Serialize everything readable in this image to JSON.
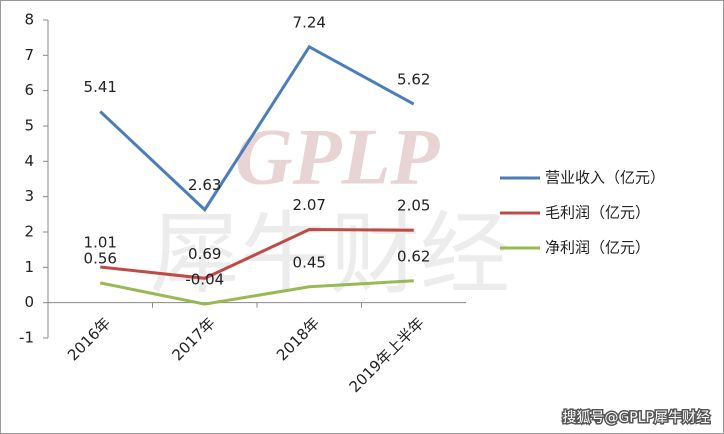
{
  "chart_data": {
    "type": "line",
    "categories": [
      "2016年",
      "2017年",
      "2018年",
      "2019年上半年"
    ],
    "series": [
      {
        "name": "营业收入（亿元）",
        "color": "#4a7ebb",
        "values": [
          5.41,
          2.63,
          7.24,
          5.62
        ]
      },
      {
        "name": "毛利润（亿元）",
        "color": "#be4b48",
        "values": [
          1.01,
          0.69,
          2.07,
          2.05
        ]
      },
      {
        "name": "净利润（亿元）",
        "color": "#98b954",
        "values": [
          0.56,
          -0.04,
          0.45,
          0.62
        ]
      }
    ],
    "ylim": [
      -1,
      8
    ],
    "yticks": [
      -1,
      0,
      1,
      2,
      3,
      4,
      5,
      6,
      7,
      8
    ],
    "grid": false,
    "legend": "right"
  },
  "watermark": {
    "brand": "GPLP",
    "name": "犀牛财经",
    "source": "搜狐号@GPLP犀牛财经"
  }
}
